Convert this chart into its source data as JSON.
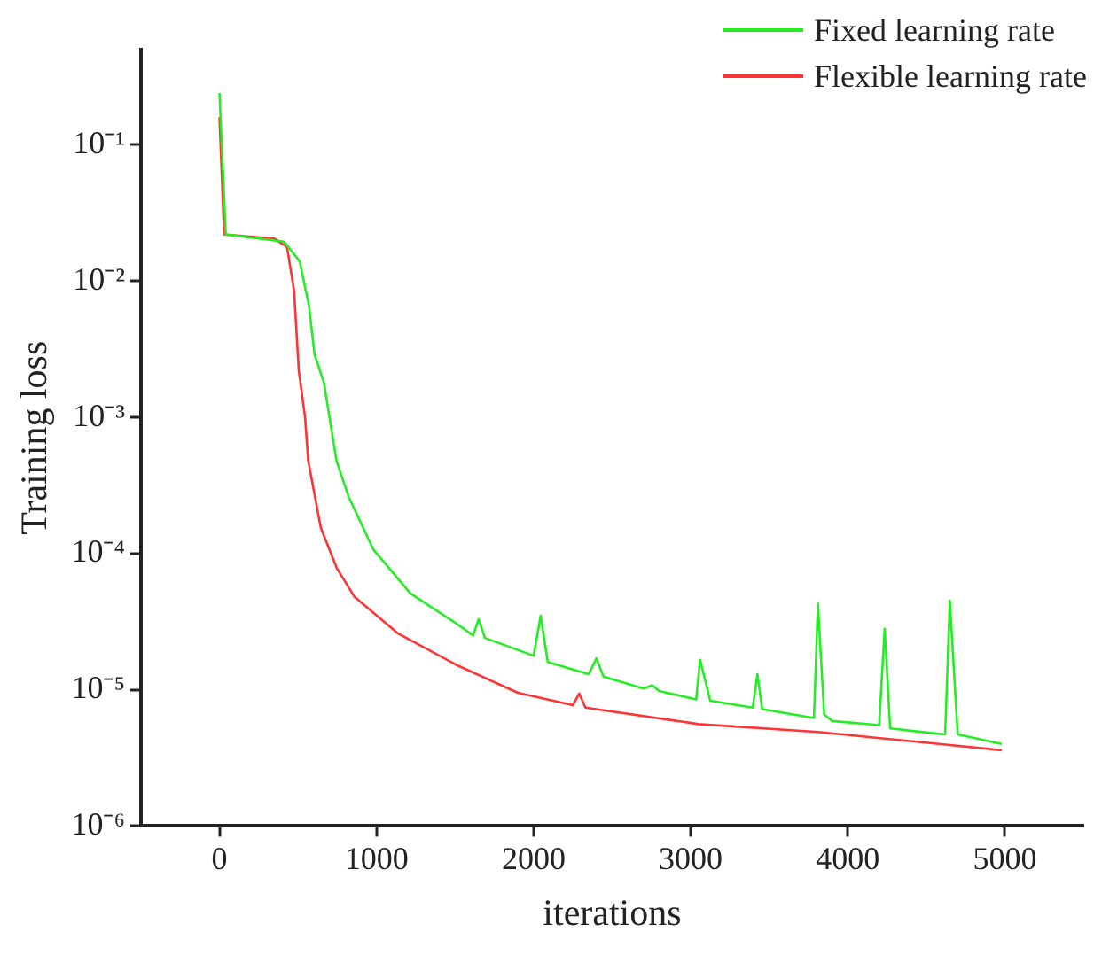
{
  "chart_data": {
    "type": "line",
    "xlabel": "iterations",
    "ylabel": "Training loss",
    "log": "y",
    "grid": false,
    "legend": "top right",
    "marker": "none",
    "line_style": "solid",
    "xlim": [
      -500,
      5500
    ],
    "xticks": [
      0,
      1000,
      2000,
      3000,
      4000,
      5000
    ],
    "ylim": [
      1e-06,
      0.5
    ],
    "yticks": [
      {
        "value": 0.1,
        "label": "10⁻¹"
      },
      {
        "value": 0.01,
        "label": "10⁻²"
      },
      {
        "value": 0.001,
        "label": "10⁻³"
      },
      {
        "value": 0.0001,
        "label": "10⁻⁴"
      },
      {
        "value": 1e-05,
        "label": "10⁻⁵"
      },
      {
        "value": 1e-06,
        "label": "10⁻⁶"
      }
    ],
    "series": [
      {
        "name": "Fixed learning rate",
        "color": "#22ee22",
        "x": [
          0,
          40,
          410,
          510,
          570,
          605,
          665,
          745,
          823,
          980,
          1216,
          1520,
          1615,
          1650,
          1690,
          2000,
          2045,
          2090,
          2350,
          2400,
          2445,
          2700,
          2755,
          2800,
          3035,
          3060,
          3125,
          3395,
          3425,
          3455,
          3785,
          3810,
          3850,
          3900,
          4200,
          4235,
          4270,
          4620,
          4650,
          4700,
          4980
        ],
        "values": [
          0.24,
          0.022,
          0.0195,
          0.014,
          0.0066,
          0.0029,
          0.0018,
          0.00048,
          0.00026,
          0.000107,
          5.1e-05,
          3e-05,
          2.5e-05,
          3.3e-05,
          2.4e-05,
          1.78e-05,
          3.5e-05,
          1.6e-05,
          1.3e-05,
          1.7e-05,
          1.25e-05,
          1.02e-05,
          1.08e-05,
          9.8e-06,
          8.5e-06,
          1.66e-05,
          8.3e-06,
          7.4e-06,
          1.3e-05,
          7.2e-06,
          6.2e-06,
          4.3e-05,
          6.6e-06,
          5.9e-06,
          5.5e-06,
          2.8e-05,
          5.2e-06,
          4.7e-06,
          4.5e-05,
          4.7e-06,
          4e-06
        ]
      },
      {
        "name": "Flexible learning rate",
        "color": "#ff3333",
        "x": [
          0,
          30,
          350,
          430,
          475,
          505,
          545,
          565,
          645,
          745,
          860,
          1135,
          1520,
          1900,
          2250,
          2290,
          2330,
          3050,
          3810,
          4580,
          4980
        ],
        "values": [
          0.16,
          0.022,
          0.0205,
          0.0178,
          0.0085,
          0.0022,
          0.001,
          0.00048,
          0.000155,
          7.9e-05,
          4.8e-05,
          2.6e-05,
          1.5e-05,
          9.5e-06,
          7.7e-06,
          9.4e-06,
          7.4e-06,
          5.6e-06,
          4.9e-06,
          4e-06,
          3.6e-06
        ]
      }
    ]
  }
}
